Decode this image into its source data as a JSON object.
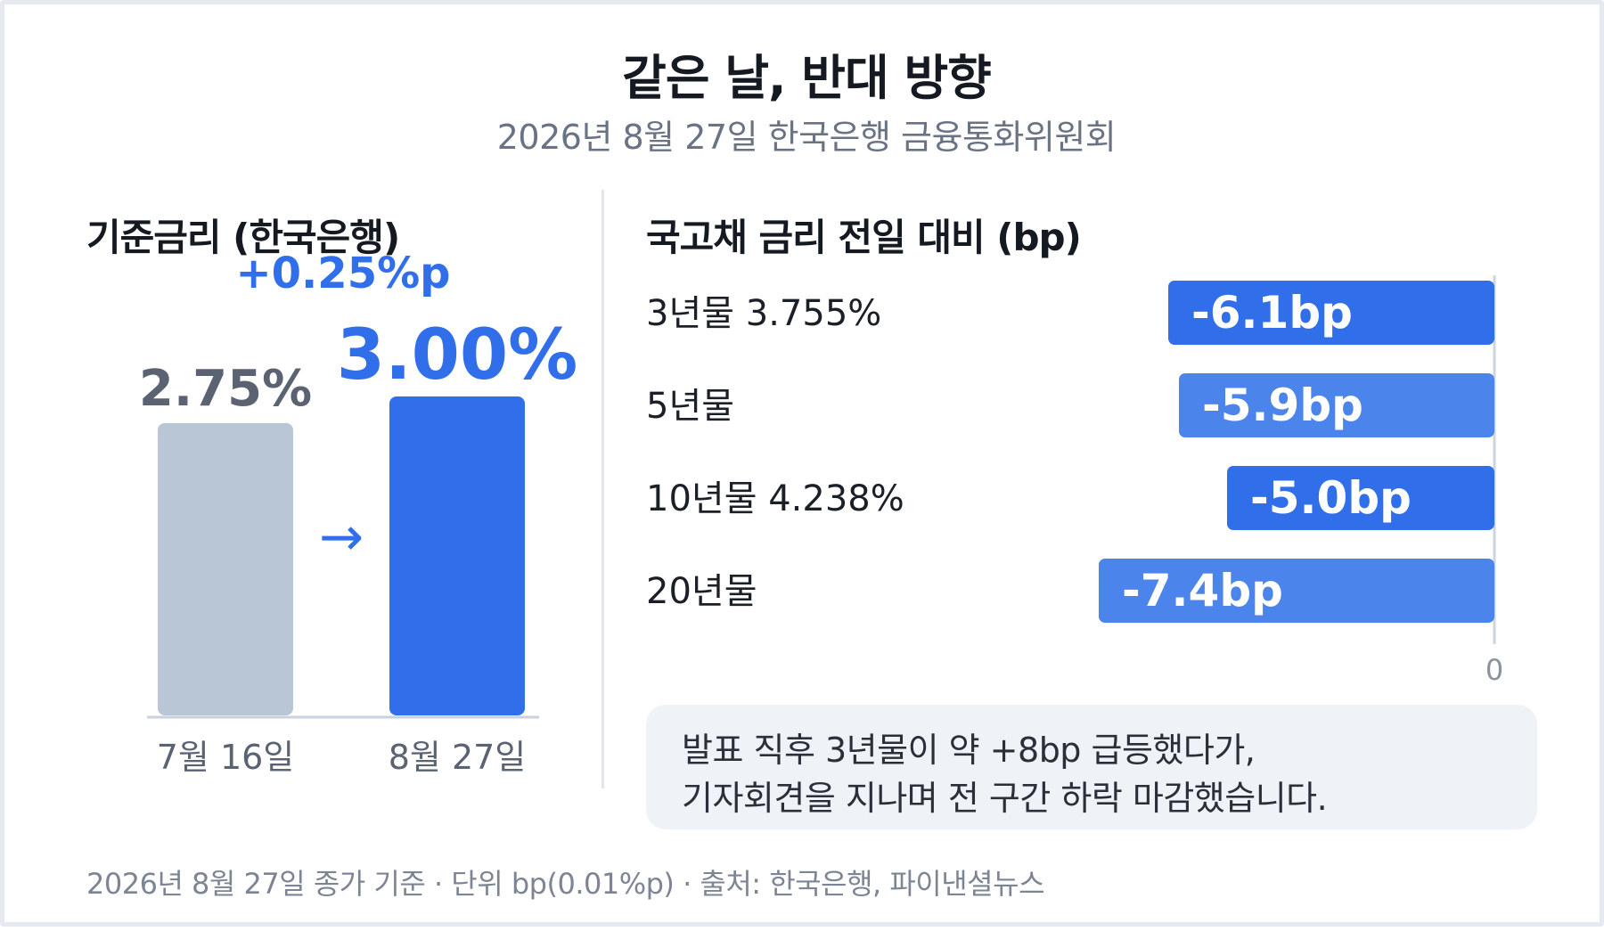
{
  "title": "같은 날, 반대 방향",
  "subtitle": "2026년 8월 27일 한국은행 금융통화위원회",
  "footer": "2026년 8월 27일 종가 기준 · 단위 bp(0.01%p) · 출처: 한국은행, 파이낸셜뉴스",
  "note": {
    "line1": "발표 직후 3년물이 약 +8bp 급등했다가,",
    "line2": "기자회견을 지나며 전 구간 하락 마감했습니다."
  },
  "colors": {
    "blue": "#316fea",
    "blue_light": "#4b85ec",
    "gray_bar": "#b9c6d6",
    "gray_text": "#5b6372"
  },
  "chart_data": [
    {
      "type": "bar",
      "title": "기준금리 (한국은행)",
      "categories": [
        "7월 16일",
        "8월 27일"
      ],
      "values": [
        2.75,
        3.0
      ],
      "value_labels": [
        "2.75%",
        "3.00%"
      ],
      "change_label": "+0.25%p",
      "arrow": "→",
      "ylim": [
        0,
        3.0
      ]
    },
    {
      "type": "bar",
      "orientation": "horizontal",
      "title": "국고채 금리 전일 대비 (bp)",
      "categories": [
        "3년물 3.755%",
        "5년물",
        "10년물 4.238%",
        "20년물"
      ],
      "values": [
        -6.1,
        -5.9,
        -5.0,
        -7.4
      ],
      "value_labels": [
        "-6.1bp",
        "-5.9bp",
        "-5.0bp",
        "-7.4bp"
      ],
      "zero_label": "0",
      "xlim": [
        -9,
        0
      ]
    }
  ]
}
